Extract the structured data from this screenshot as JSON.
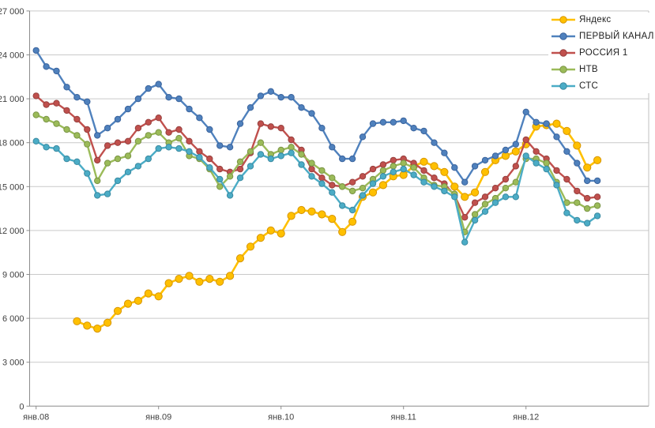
{
  "chart_data": {
    "type": "line",
    "title": "",
    "xlabel": "",
    "ylabel": "",
    "n_months": 56,
    "x_start": "янв.08",
    "x_end": "авг.12",
    "x_tick_labels": [
      "янв.08",
      "янв.09",
      "янв.10",
      "янв.11",
      "янв.12"
    ],
    "x_tick_month_indices": [
      0,
      12,
      24,
      36,
      48
    ],
    "y_axis": {
      "min": 0,
      "max": 27000,
      "step": 3000,
      "tick_labels_top_down": [
        "27 000",
        "24 000",
        "21 000",
        "18 000",
        "15 000",
        "12 000",
        "9 000",
        "6 000",
        "3 000",
        "0"
      ]
    },
    "grid": true,
    "legend_position": "top-right",
    "series": [
      {
        "name": "Яндекс",
        "color": "#FFC000",
        "marker_stroke": "#D79500",
        "marker_radius": 4.6,
        "line_width": 2.6,
        "values": [
          null,
          null,
          null,
          null,
          5800,
          5500,
          5300,
          5700,
          6500,
          7000,
          7200,
          7700,
          7500,
          8400,
          8700,
          8900,
          8500,
          8700,
          8500,
          8900,
          10100,
          10900,
          11500,
          12000,
          11800,
          13000,
          13400,
          13300,
          13100,
          12800,
          11900,
          12600,
          14300,
          14600,
          15100,
          15700,
          15800,
          16400,
          16700,
          16400,
          16000,
          15000,
          14300,
          14600,
          16000,
          16800,
          17100,
          17400,
          17900,
          19100,
          19200,
          19300,
          18800,
          17800,
          16300,
          16800
        ]
      },
      {
        "name": "ПЕРВЫЙ КАНАЛ",
        "color": "#4F81BD",
        "marker_stroke": "#3A639C",
        "marker_radius": 3.7,
        "line_width": 2.4,
        "values": [
          24300,
          23200,
          22900,
          21800,
          21100,
          20800,
          18500,
          19000,
          19600,
          20300,
          21000,
          21700,
          22000,
          21100,
          21000,
          20300,
          19700,
          18900,
          17800,
          17700,
          19300,
          20400,
          21200,
          21500,
          21100,
          21100,
          20400,
          20000,
          19000,
          17700,
          16900,
          16900,
          18400,
          19300,
          19400,
          19400,
          19500,
          19000,
          18800,
          18000,
          17300,
          16300,
          15300,
          16400,
          16800,
          17100,
          17500,
          17900,
          20100,
          19400,
          19300,
          18400,
          17400,
          16600,
          15400,
          15400
        ]
      },
      {
        "name": "РОССИЯ 1",
        "color": "#C0504D",
        "marker_stroke": "#96403E",
        "marker_radius": 3.7,
        "line_width": 2.4,
        "values": [
          21200,
          20600,
          20700,
          20200,
          19600,
          18900,
          16800,
          17800,
          18000,
          18100,
          19000,
          19400,
          19700,
          18700,
          18900,
          18100,
          17400,
          16900,
          16200,
          16000,
          16200,
          17300,
          19300,
          19100,
          19000,
          18200,
          17500,
          16200,
          15600,
          15100,
          15000,
          15300,
          15700,
          16200,
          16500,
          16800,
          16900,
          16600,
          16100,
          15600,
          15200,
          14400,
          12900,
          13900,
          14300,
          14900,
          15500,
          16400,
          18200,
          17400,
          16900,
          16100,
          15500,
          14700,
          14200,
          14300
        ]
      },
      {
        "name": "НТВ",
        "color": "#9BBB59",
        "marker_stroke": "#7A9445",
        "marker_radius": 3.7,
        "line_width": 2.4,
        "values": [
          19900,
          19600,
          19300,
          18900,
          18500,
          17900,
          15400,
          16600,
          16900,
          17100,
          18100,
          18500,
          18700,
          18000,
          18300,
          17100,
          16900,
          16200,
          15000,
          15700,
          16700,
          17400,
          18000,
          17200,
          17500,
          17700,
          17200,
          16600,
          16100,
          15600,
          15000,
          14700,
          14900,
          15500,
          16100,
          16400,
          16600,
          16300,
          15600,
          15100,
          15000,
          14500,
          11900,
          13100,
          13800,
          14200,
          14900,
          15300,
          16900,
          16900,
          16600,
          15300,
          13900,
          13900,
          13500,
          13700
        ]
      },
      {
        "name": "СТС",
        "color": "#4BACC6",
        "marker_stroke": "#3A89A0",
        "marker_radius": 3.7,
        "line_width": 2.4,
        "values": [
          18100,
          17700,
          17600,
          16900,
          16700,
          15900,
          14400,
          14500,
          15400,
          16000,
          16400,
          16900,
          17600,
          17700,
          17600,
          17400,
          17000,
          16300,
          15500,
          14400,
          15600,
          16400,
          17200,
          16900,
          17100,
          17300,
          16500,
          15700,
          15200,
          14600,
          13700,
          13400,
          14400,
          15200,
          15700,
          16000,
          16200,
          15800,
          15300,
          15000,
          14700,
          14300,
          11200,
          12700,
          13300,
          13900,
          14300,
          14300,
          17100,
          16600,
          16200,
          15100,
          13200,
          12700,
          12500,
          13000
        ]
      }
    ],
    "style": {
      "grid_color": "#C9C9C9",
      "border_color": "#BFBFBF",
      "axis_color": "#8C8C8C",
      "tick_color": "#8C8C8C",
      "label_color": "#404040",
      "background": "#FFFFFF",
      "axis_font_size": 11
    }
  }
}
